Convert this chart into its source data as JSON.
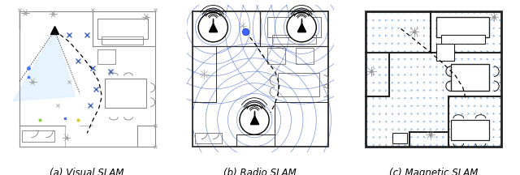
{
  "panels": [
    {
      "label": "(a) Visual SLAM"
    },
    {
      "label": "(b) Radio SLAM"
    },
    {
      "label": "(c) Magnetic SLAM"
    }
  ],
  "figsize": [
    6.4,
    2.16
  ],
  "dpi": 100,
  "background": "#ffffff",
  "text_color": "#000000",
  "caption_fontsize": 8.5,
  "wall_color": "#555555",
  "furniture_color": "#777777",
  "blue_color": "#3355cc",
  "arrow_color": "#5599dd",
  "traj_color": "#111111",
  "beacon_circle_color": "#4466cc"
}
